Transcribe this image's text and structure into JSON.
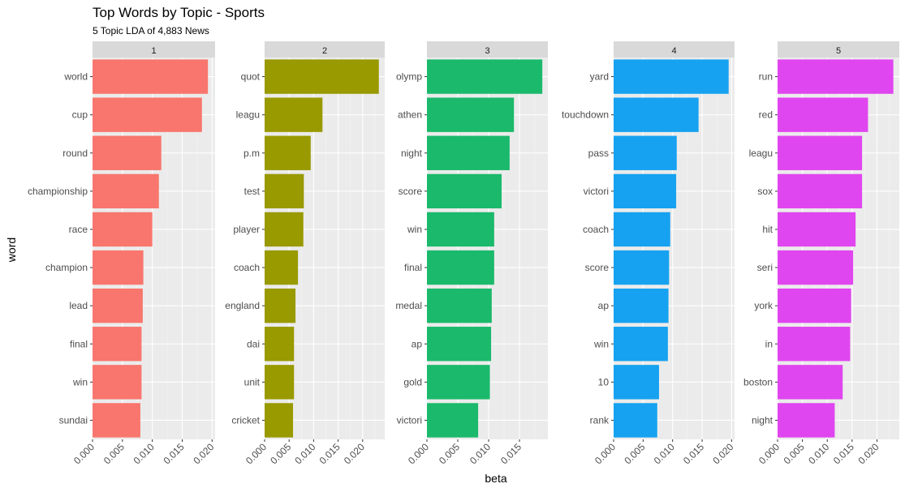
{
  "chart_data": {
    "type": "bar",
    "orientation": "horizontal",
    "faceted": true,
    "title": "Top Words by Topic - Sports",
    "subtitle": "5 Topic LDA of 4,883 News",
    "xlabel": "beta",
    "ylabel": "word",
    "grid": true,
    "panels": [
      {
        "label": "1",
        "color": "#F8766D",
        "xlim": [
          0,
          0.0205
        ],
        "xticks": [
          "0.000",
          "0.005",
          "0.010",
          "0.015",
          "0.020"
        ],
        "xtick_values": [
          0,
          0.005,
          0.01,
          0.015,
          0.02
        ],
        "categories": [
          "world",
          "cup",
          "round",
          "championship",
          "race",
          "champion",
          "lead",
          "final",
          "win",
          "sundai"
        ],
        "values": [
          0.0193,
          0.0183,
          0.0115,
          0.0111,
          0.01,
          0.0085,
          0.0084,
          0.0082,
          0.0082,
          0.008
        ]
      },
      {
        "label": "2",
        "color": "#999900",
        "xlim": [
          0,
          0.0245
        ],
        "xticks": [
          "0.000",
          "0.005",
          "0.010",
          "0.015",
          "0.020"
        ],
        "xtick_values": [
          0,
          0.005,
          0.01,
          0.015,
          0.02
        ],
        "categories": [
          "quot",
          "leagu",
          "p.m",
          "test",
          "player",
          "coach",
          "england",
          "dai",
          "unit",
          "cricket"
        ],
        "values": [
          0.0233,
          0.0118,
          0.0094,
          0.008,
          0.0079,
          0.0068,
          0.0063,
          0.006,
          0.006,
          0.0058
        ]
      },
      {
        "label": "3",
        "color": "#1BB96B",
        "xlim": [
          0,
          0.0196
        ],
        "xticks": [
          "0.000",
          "0.005",
          "0.010",
          "0.015"
        ],
        "xtick_values": [
          0,
          0.005,
          0.01,
          0.015
        ],
        "categories": [
          "olymp",
          "athen",
          "night",
          "score",
          "win",
          "final",
          "medal",
          "ap",
          "gold",
          "victori"
        ],
        "values": [
          0.0187,
          0.0141,
          0.0134,
          0.0121,
          0.0109,
          0.0109,
          0.0105,
          0.0104,
          0.0102,
          0.0083
        ]
      },
      {
        "label": "4",
        "color": "#16A2F0",
        "xlim": [
          0,
          0.0205
        ],
        "xticks": [
          "0.000",
          "0.005",
          "0.010",
          "0.015",
          "0.020"
        ],
        "xtick_values": [
          0,
          0.005,
          0.01,
          0.015,
          0.02
        ],
        "categories": [
          "yard",
          "touchdown",
          "pass",
          "victori",
          "coach",
          "score",
          "ap",
          "win",
          "10",
          "rank"
        ],
        "values": [
          0.0195,
          0.0144,
          0.0107,
          0.0106,
          0.0096,
          0.0094,
          0.0093,
          0.0092,
          0.0077,
          0.0074
        ]
      },
      {
        "label": "5",
        "color": "#E046EF",
        "xlim": [
          0,
          0.0245
        ],
        "xticks": [
          "0.000",
          "0.005",
          "0.010",
          "0.015",
          "0.020"
        ],
        "xtick_values": [
          0,
          0.005,
          0.01,
          0.015,
          0.02
        ],
        "categories": [
          "run",
          "red",
          "leagu",
          "sox",
          "hit",
          "seri",
          "york",
          "in",
          "boston",
          "night"
        ],
        "values": [
          0.0233,
          0.0182,
          0.017,
          0.017,
          0.0157,
          0.0152,
          0.0148,
          0.0146,
          0.0131,
          0.0115
        ]
      }
    ]
  }
}
